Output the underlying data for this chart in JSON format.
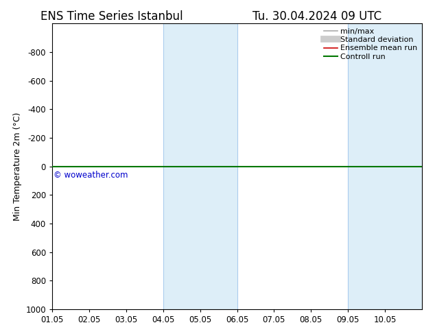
{
  "title_left": "ENS Time Series Istanbul",
  "title_right": "Tu. 30.04.2024 09 UTC",
  "ylabel": "Min Temperature 2m (°C)",
  "xlim": [
    0,
    10
  ],
  "ylim": [
    1000,
    -1000
  ],
  "yticks": [
    -800,
    -600,
    -400,
    -200,
    0,
    200,
    400,
    600,
    800,
    1000
  ],
  "xtick_labels": [
    "01.05",
    "02.05",
    "03.05",
    "04.05",
    "05.05",
    "06.05",
    "07.05",
    "08.05",
    "09.05",
    "10.05"
  ],
  "xtick_positions": [
    0,
    1,
    2,
    3,
    4,
    5,
    6,
    7,
    8,
    9
  ],
  "shaded_bands": [
    {
      "xmin": 3,
      "xmax": 5,
      "color": "#ddeef8"
    },
    {
      "xmin": 8,
      "xmax": 10.5,
      "color": "#ddeef8"
    }
  ],
  "band_edge_color": "#aaccee",
  "control_run_y": 0,
  "control_run_color": "#007700",
  "ensemble_mean_color": "#cc0000",
  "watermark": "© woweather.com",
  "watermark_color": "#0000cc",
  "legend_items": [
    {
      "label": "min/max",
      "color": "#aaaaaa",
      "lw": 1.2,
      "type": "line"
    },
    {
      "label": "Standard deviation",
      "color": "#cccccc",
      "lw": 7,
      "type": "line"
    },
    {
      "label": "Ensemble mean run",
      "color": "#cc0000",
      "lw": 1.2,
      "type": "line"
    },
    {
      "label": "Controll run",
      "color": "#007700",
      "lw": 1.5,
      "type": "line"
    }
  ],
  "background_color": "#ffffff",
  "plot_bg_color": "#ffffff",
  "spine_color": "#000000",
  "tick_color": "#000000",
  "title_fontsize": 12,
  "label_fontsize": 9,
  "tick_fontsize": 8.5,
  "legend_fontsize": 8
}
